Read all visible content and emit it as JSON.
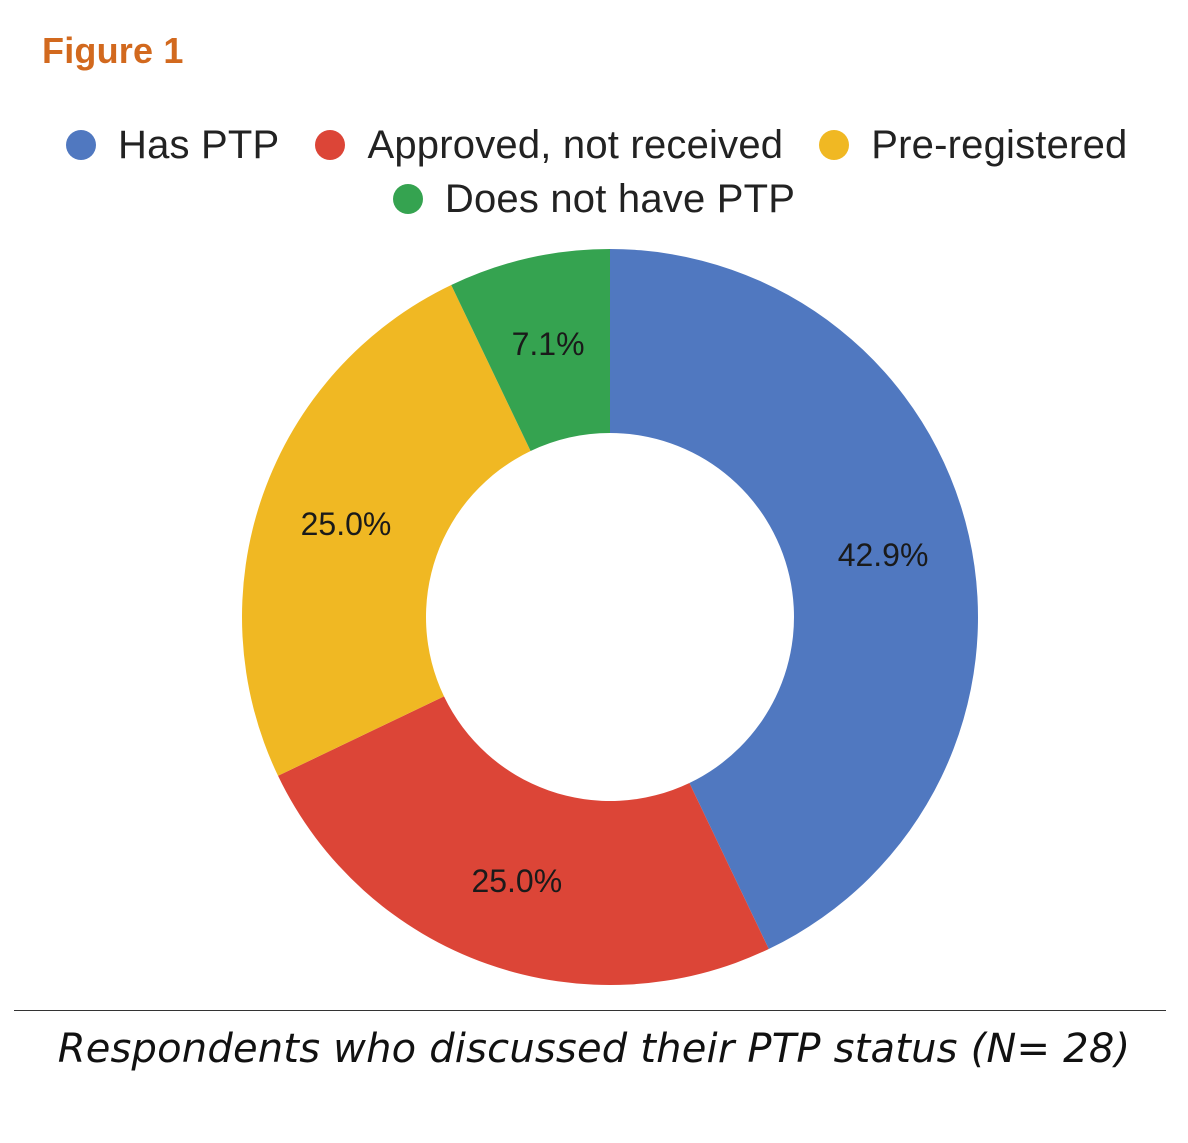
{
  "figure_label": "Figure 1",
  "caption": "Respondents who discussed their PTP status (N= 28)",
  "chart_data": {
    "type": "pie",
    "donut": true,
    "title": "",
    "legend_position": "top",
    "start_angle_deg": 0,
    "direction": "clockwise",
    "series": [
      {
        "name": "Has PTP",
        "value": 42.9,
        "label": "42.9%",
        "color": "#5078c0"
      },
      {
        "name": "Approved, not received",
        "value": 25.0,
        "label": "25.0%",
        "color": "#dc4537"
      },
      {
        "name": "Pre-registered",
        "value": 25.0,
        "label": "25.0%",
        "color": "#f0b823"
      },
      {
        "name": "Does not have PTP",
        "value": 7.1,
        "label": "7.1%",
        "color": "#35a350"
      }
    ]
  }
}
